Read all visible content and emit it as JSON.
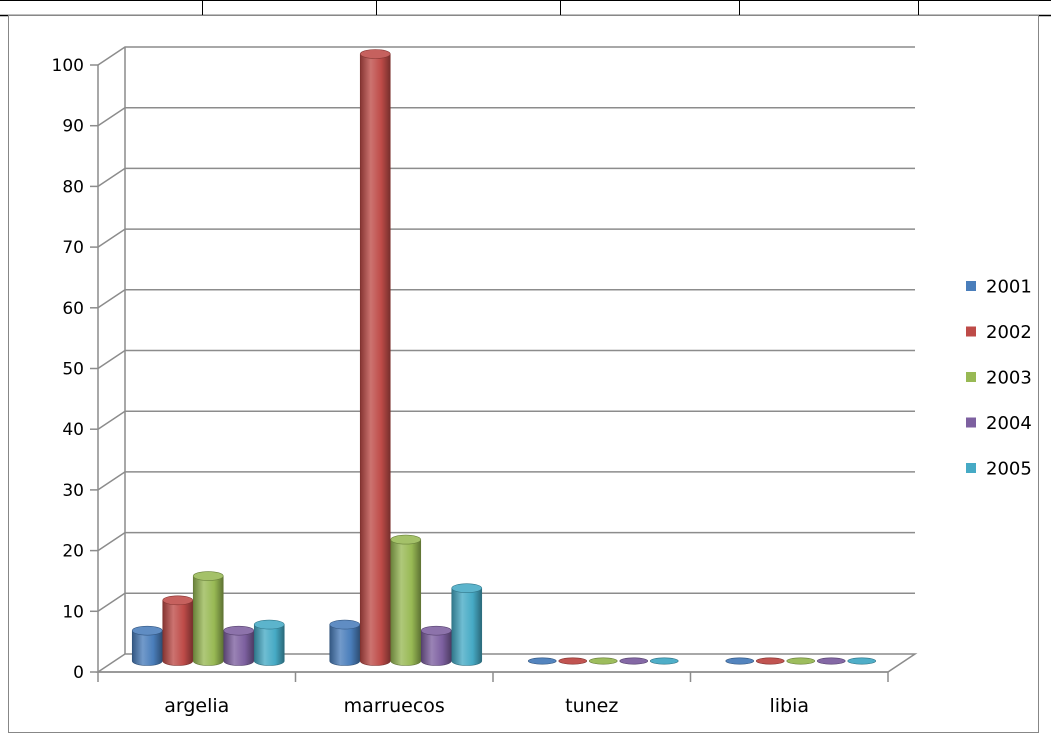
{
  "chart_data": {
    "type": "bar",
    "style": "3d-cylinder",
    "title": "",
    "xlabel": "",
    "ylabel": "",
    "categories": [
      "argelia",
      "marruecos",
      "tunez",
      "libia"
    ],
    "series": [
      {
        "name": "2001",
        "color": "#4a7ebb",
        "values": [
          5,
          6,
          0,
          0
        ]
      },
      {
        "name": "2002",
        "color": "#be4b48",
        "values": [
          10,
          100,
          0,
          0
        ]
      },
      {
        "name": "2003",
        "color": "#98b954",
        "values": [
          14,
          20,
          0,
          0
        ]
      },
      {
        "name": "2004",
        "color": "#7d60a0",
        "values": [
          5,
          5,
          0,
          0
        ]
      },
      {
        "name": "2005",
        "color": "#46aac5",
        "values": [
          6,
          12,
          0,
          0
        ]
      }
    ],
    "ylim": [
      0,
      100
    ],
    "yticks": [
      0,
      10,
      20,
      30,
      40,
      50,
      60,
      70,
      80,
      90,
      100
    ],
    "grid": true,
    "legend_position": "right"
  }
}
